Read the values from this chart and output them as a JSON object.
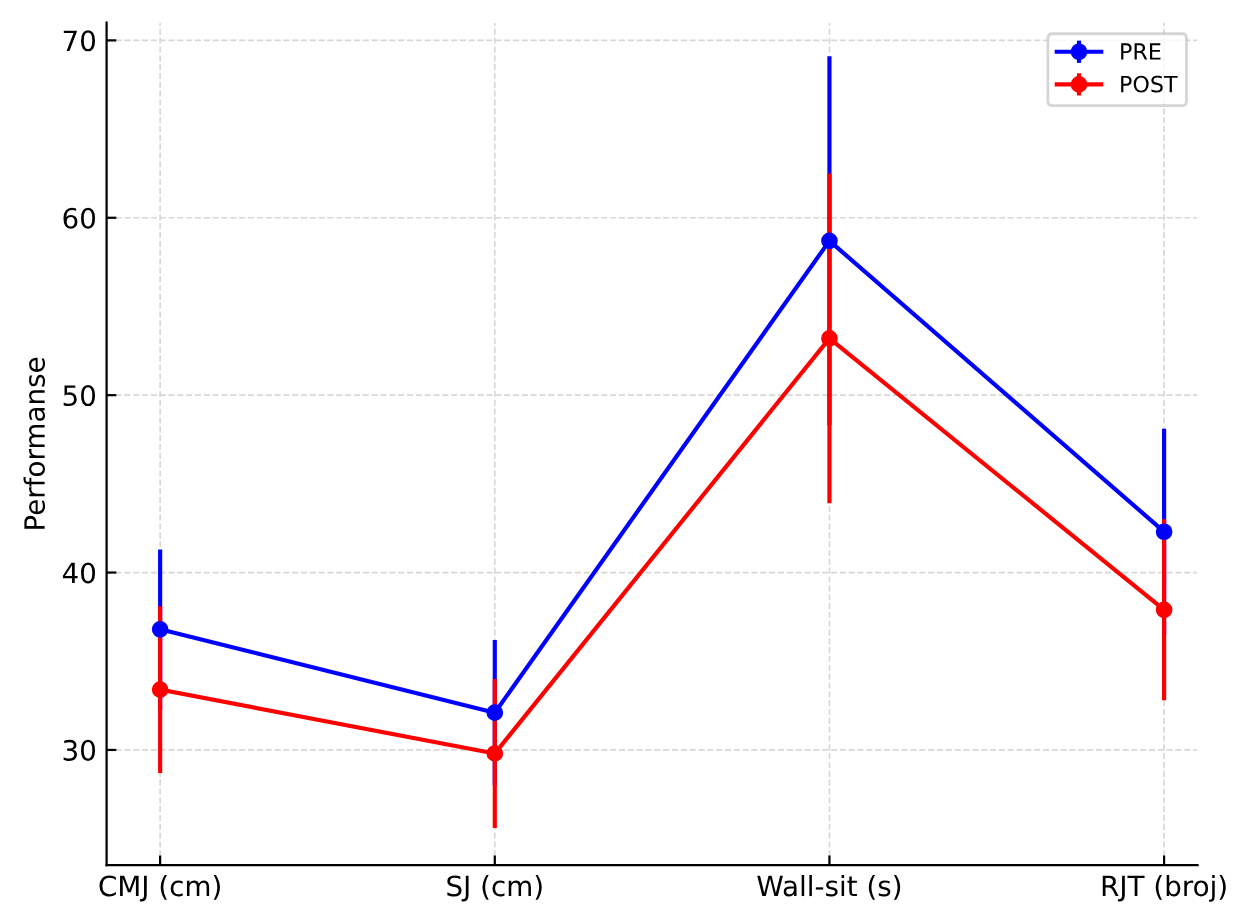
{
  "chart_data": {
    "type": "line",
    "ylabel": "Performanse",
    "categories": [
      "CMJ (cm)",
      "SJ (cm)",
      "Wall-sit (s)",
      "RJT (broj)"
    ],
    "series": [
      {
        "name": "PRE",
        "color": "#0000ff",
        "values": [
          36.8,
          32.1,
          58.7,
          42.3
        ],
        "errors": [
          4.5,
          4.1,
          10.4,
          5.8
        ]
      },
      {
        "name": "POST",
        "color": "#ff0000",
        "values": [
          33.4,
          29.8,
          53.2,
          37.9
        ],
        "errors": [
          4.7,
          4.2,
          9.3,
          5.1
        ]
      }
    ],
    "ylim": [
      23.5,
      71
    ],
    "yticks": [
      30,
      40,
      50,
      60,
      70
    ],
    "grid": true,
    "legend": "top right",
    "marker": "circle",
    "line_style": "solid"
  }
}
